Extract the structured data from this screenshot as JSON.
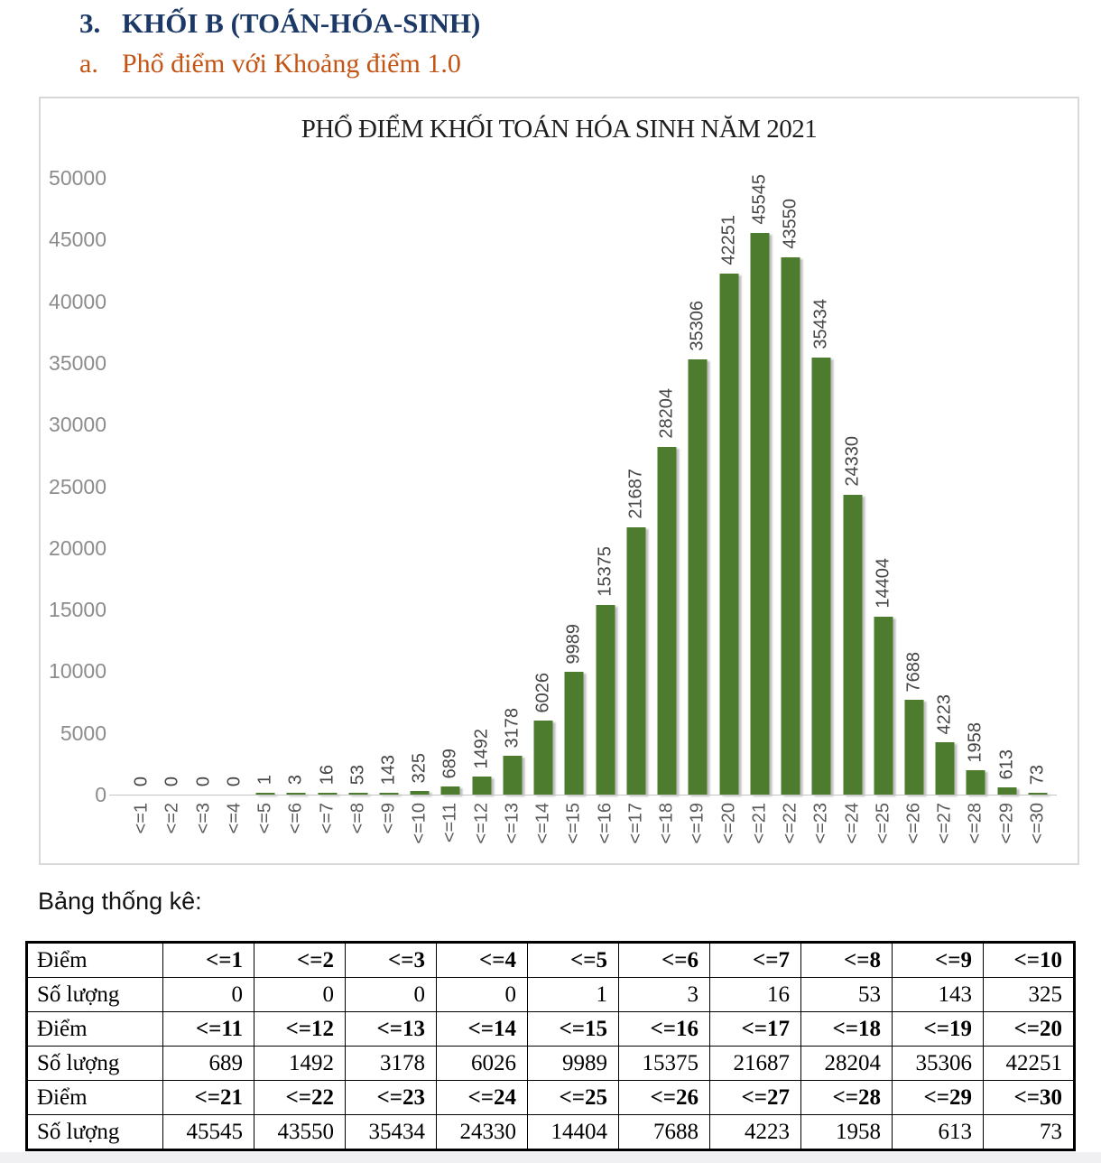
{
  "page": {
    "heading_number": "3.",
    "heading": "KHỐI B (TOÁN-HÓA-SINH)",
    "subheading_letter": "a.",
    "subheading": "Phổ điểm với Khoảng điểm 1.0"
  },
  "colors": {
    "heading": "#1b3866",
    "subheading": "#c35414",
    "bar": "#4e7c2f",
    "y_axis_label": "#8c8c8c",
    "data_label": "#464646",
    "x_axis_label": "#5a5a5a",
    "chart_border": "#d8d8d8",
    "table_border": "#000000"
  },
  "chart_data": {
    "type": "bar",
    "title": "PHỔ ĐIỂM KHỐI TOÁN HÓA SINH NĂM 2021",
    "categories": [
      "<=1",
      "<=2",
      "<=3",
      "<=4",
      "<=5",
      "<=6",
      "<=7",
      "<=8",
      "<=9",
      "<=10",
      "<=11",
      "<=12",
      "<=13",
      "<=14",
      "<=15",
      "<=16",
      "<=17",
      "<=18",
      "<=19",
      "<=20",
      "<=21",
      "<=22",
      "<=23",
      "<=24",
      "<=25",
      "<=26",
      "<=27",
      "<=28",
      "<=29",
      "<=30"
    ],
    "values": [
      0,
      0,
      0,
      0,
      1,
      3,
      16,
      53,
      143,
      325,
      689,
      1492,
      3178,
      6026,
      9989,
      15375,
      21687,
      28204,
      35306,
      42251,
      45545,
      43550,
      35434,
      24330,
      14404,
      7688,
      4223,
      1958,
      613,
      73
    ],
    "xlabel": "",
    "ylabel": "",
    "ylim": [
      0,
      50000
    ],
    "yticks": [
      0,
      5000,
      10000,
      15000,
      20000,
      25000,
      30000,
      35000,
      40000,
      45000,
      50000
    ],
    "grid": false,
    "legend": "none",
    "data_labels": "rotated-90-above-bars",
    "x_labels": "rotated-90"
  },
  "table": {
    "caption": "Bảng thống kê:",
    "rows": [
      {
        "label": "Điểm",
        "bold": true,
        "cells": [
          "<=1",
          "<=2",
          "<=3",
          "<=4",
          "<=5",
          "<=6",
          "<=7",
          "<=8",
          "<=9",
          "<=10"
        ]
      },
      {
        "label": "Số lượng",
        "bold": false,
        "cells": [
          "0",
          "0",
          "0",
          "0",
          "1",
          "3",
          "16",
          "53",
          "143",
          "325"
        ]
      },
      {
        "label": "Điểm",
        "bold": true,
        "cells": [
          "<=11",
          "<=12",
          "<=13",
          "<=14",
          "<=15",
          "<=16",
          "<=17",
          "<=18",
          "<=19",
          "<=20"
        ]
      },
      {
        "label": "Số lượng",
        "bold": false,
        "cells": [
          "689",
          "1492",
          "3178",
          "6026",
          "9989",
          "15375",
          "21687",
          "28204",
          "35306",
          "42251"
        ]
      },
      {
        "label": "Điểm",
        "bold": true,
        "cells": [
          "<=21",
          "<=22",
          "<=23",
          "<=24",
          "<=25",
          "<=26",
          "<=27",
          "<=28",
          "<=29",
          "<=30"
        ]
      },
      {
        "label": "Số lượng",
        "bold": false,
        "cells": [
          "45545",
          "43550",
          "35434",
          "24330",
          "14404",
          "7688",
          "4223",
          "1958",
          "613",
          "73"
        ]
      }
    ]
  }
}
